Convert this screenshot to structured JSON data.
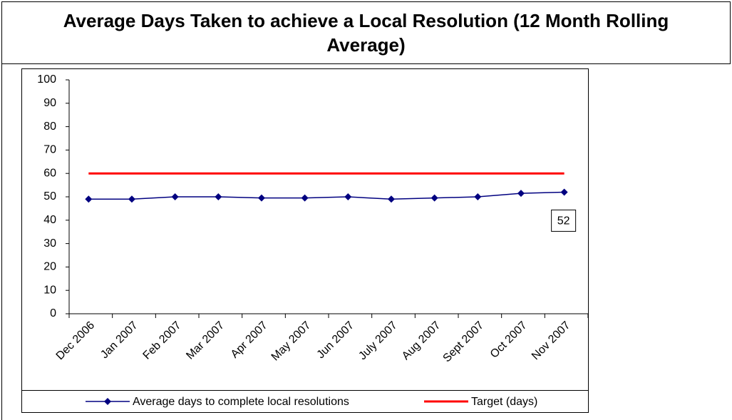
{
  "chart_data": {
    "type": "line",
    "title": "Average Days Taken to achieve a Local Resolution (12 Month Rolling Average)",
    "categories": [
      "Dec 2006",
      "Jan 2007",
      "Feb 2007",
      "Mar 2007",
      "Apr 2007",
      "May 2007",
      "Jun 2007",
      "July 2007",
      "Aug 2007",
      "Sept 2007",
      "Oct 2007",
      "Nov 2007"
    ],
    "series": [
      {
        "name": "Average days to complete local resolutions",
        "color": "#000080",
        "marker": "diamond",
        "values": [
          49,
          49,
          50,
          50,
          49.5,
          49.5,
          50,
          49,
          49.5,
          50,
          51.5,
          52
        ]
      },
      {
        "name": "Target (days)",
        "color": "#ff0000",
        "marker": "none",
        "values": [
          60,
          60,
          60,
          60,
          60,
          60,
          60,
          60,
          60,
          60,
          60,
          60
        ]
      }
    ],
    "ylim": [
      0,
      100
    ],
    "yticks": [
      0,
      10,
      20,
      30,
      40,
      50,
      60,
      70,
      80,
      90,
      100
    ],
    "grid": false,
    "legend": "bottom"
  }
}
